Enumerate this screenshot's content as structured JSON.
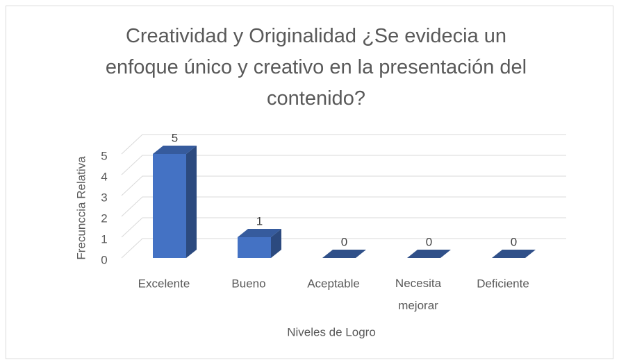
{
  "chart_data": {
    "type": "bar3d",
    "title": "Creatividad y Originalidad ¿Se evidecia un enfoque único y creativo en la presentación del contenido?",
    "x_label": "Niveles de Logro",
    "y_label": "Frecunccia Relativa",
    "categories": [
      "Excelente",
      "Bueno",
      "Aceptable",
      "Necesita mejorar",
      "Deficiente"
    ],
    "values": [
      5,
      1,
      0,
      0,
      0
    ],
    "color": "#4472c4",
    "ylim": [
      0,
      5
    ],
    "yticks": [
      0,
      1,
      2,
      3,
      4,
      5
    ],
    "grid": true
  }
}
